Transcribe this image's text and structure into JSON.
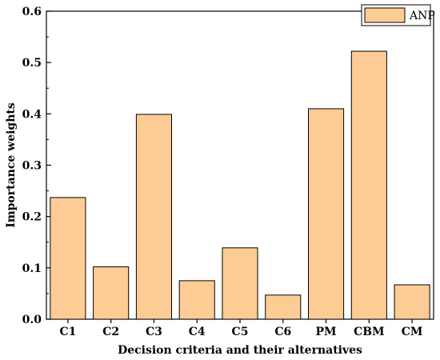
{
  "chart_data": {
    "type": "bar",
    "categories": [
      "C1",
      "C2",
      "C3",
      "C4",
      "C5",
      "C6",
      "PM",
      "CBM",
      "CM"
    ],
    "series": [
      {
        "name": "ANP",
        "values": [
          0.237,
          0.102,
          0.399,
          0.075,
          0.139,
          0.047,
          0.41,
          0.522,
          0.067
        ]
      }
    ],
    "xlabel": "Decision criteria and their alternatives",
    "ylabel": "Importance weights",
    "ylim": [
      0,
      0.6
    ],
    "yticks": [
      "0.0",
      "0.1",
      "0.2",
      "0.3",
      "0.4",
      "0.5",
      "0.6"
    ],
    "grid": false,
    "legend_position": "top-right",
    "colors": {
      "bar_fill": "#FDCC95",
      "bar_stroke": "#000000"
    }
  }
}
